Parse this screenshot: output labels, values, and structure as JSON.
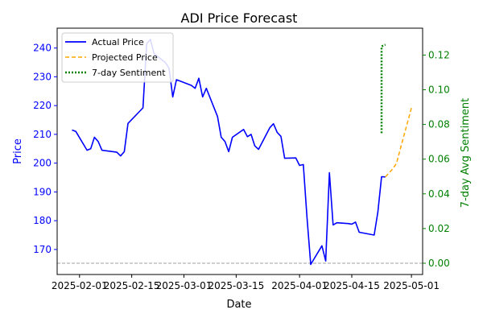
{
  "chart_data": {
    "type": "line",
    "title": "ADI Price Forecast",
    "xlabel": "Date",
    "ylabel_left": "Price",
    "ylabel_right": "7-day Avg Sentiment",
    "xlim": [
      "2025-01-26",
      "2025-05-04"
    ],
    "ylim_left": [
      161.3,
      246.9
    ],
    "ylim_right": [
      -0.0065,
      0.1355
    ],
    "x_ticks": [
      "2025-02-01",
      "2025-02-15",
      "2025-03-01",
      "2025-03-15",
      "2025-04-01",
      "2025-04-15",
      "2025-05-01"
    ],
    "y_ticks_left": [
      170,
      180,
      190,
      200,
      210,
      220,
      230,
      240
    ],
    "y_ticks_right": [
      0.0,
      0.02,
      0.04,
      0.06,
      0.08,
      0.1,
      0.12
    ],
    "y_ticks_right_labels": [
      "0.00",
      "0.02",
      "0.04",
      "0.06",
      "0.08",
      "0.10",
      "0.12"
    ],
    "hline_right": 0.0,
    "legend_position": "top-left",
    "colors": {
      "actual": "#0000ff",
      "projected": "#ffa500",
      "sentiment": "#008000",
      "left_axis": "#0000ff",
      "right_axis": "#008000",
      "hline": "#808080"
    },
    "series": [
      {
        "name": "Actual Price",
        "axis": "left",
        "style": "solid",
        "x": [
          "2025-01-30",
          "2025-01-31",
          "2025-02-03",
          "2025-02-04",
          "2025-02-05",
          "2025-02-06",
          "2025-02-07",
          "2025-02-10",
          "2025-02-11",
          "2025-02-12",
          "2025-02-13",
          "2025-02-14",
          "2025-02-18",
          "2025-02-19",
          "2025-02-20",
          "2025-02-21",
          "2025-02-24",
          "2025-02-25",
          "2025-02-26",
          "2025-02-27",
          "2025-02-28",
          "2025-03-03",
          "2025-03-04",
          "2025-03-05",
          "2025-03-06",
          "2025-03-07",
          "2025-03-10",
          "2025-03-11",
          "2025-03-12",
          "2025-03-13",
          "2025-03-14",
          "2025-03-17",
          "2025-03-18",
          "2025-03-19",
          "2025-03-20",
          "2025-03-21",
          "2025-03-24",
          "2025-03-25",
          "2025-03-26",
          "2025-03-27",
          "2025-03-28",
          "2025-03-31",
          "2025-04-01",
          "2025-04-02",
          "2025-04-03",
          "2025-04-04",
          "2025-04-07",
          "2025-04-08",
          "2025-04-09",
          "2025-04-10",
          "2025-04-11",
          "2025-04-14",
          "2025-04-15",
          "2025-04-16",
          "2025-04-17",
          "2025-04-21",
          "2025-04-22",
          "2025-04-23",
          "2025-04-24"
        ],
        "values": [
          211.5,
          211.0,
          204.5,
          205.0,
          209.0,
          207.5,
          204.5,
          204.0,
          203.8,
          202.5,
          204.0,
          213.8,
          219.2,
          241.5,
          243.0,
          238.0,
          235.0,
          233.0,
          223.0,
          229.0,
          228.5,
          227.0,
          226.0,
          229.5,
          223.0,
          226.0,
          216.2,
          209.0,
          207.5,
          204.0,
          209.0,
          211.7,
          209.2,
          210.0,
          206.0,
          204.8,
          212.3,
          213.7,
          210.7,
          209.3,
          201.7,
          201.8,
          199.2,
          199.5,
          181.0,
          164.8,
          171.3,
          166.0,
          196.7,
          178.5,
          179.3,
          179.0,
          178.8,
          179.5,
          176.0,
          175.0,
          183.0,
          195.3,
          195.2
        ]
      },
      {
        "name": "Projected Price",
        "axis": "left",
        "style": "dashed",
        "x": [
          "2025-04-24",
          "2025-04-25",
          "2025-04-26",
          "2025-04-27",
          "2025-04-28",
          "2025-04-29",
          "2025-04-30",
          "2025-05-01"
        ],
        "values": [
          195.2,
          196.6,
          198.0,
          200.0,
          204.8,
          209.6,
          214.4,
          219.2
        ]
      },
      {
        "name": "7-day Sentiment",
        "axis": "right",
        "style": "dotted",
        "x": [
          "2025-04-23",
          "2025-04-23",
          "2025-04-24"
        ],
        "values": [
          0.075,
          0.125,
          0.126
        ]
      }
    ]
  }
}
